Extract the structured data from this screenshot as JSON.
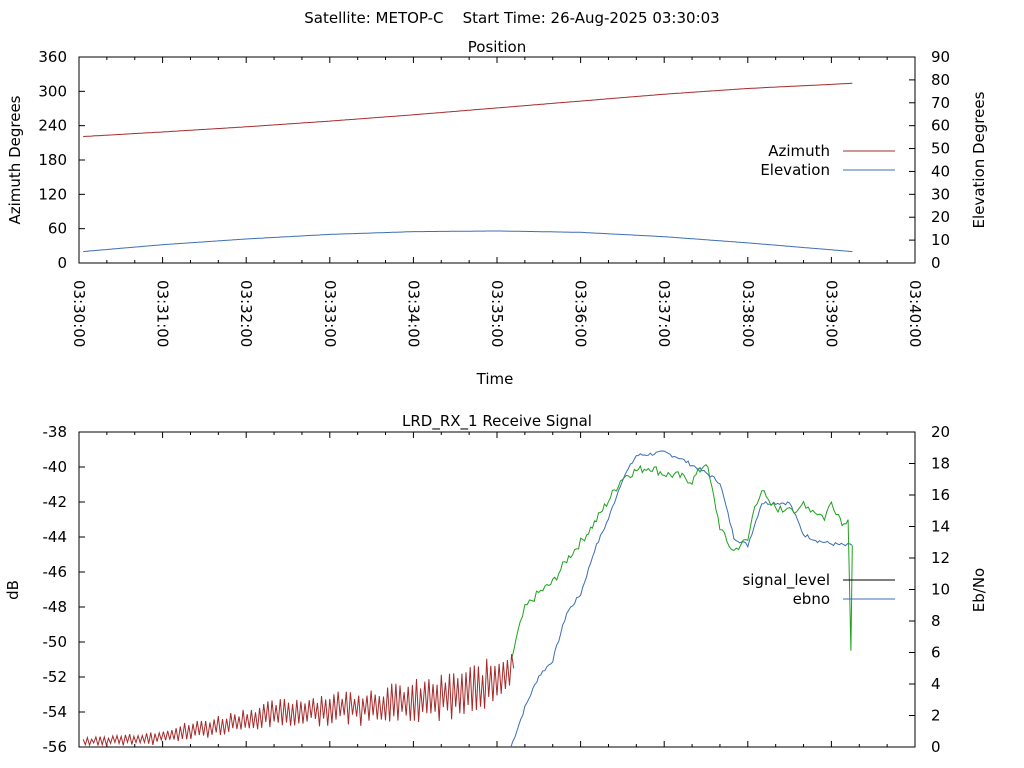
{
  "header": {
    "satellite": "Satellite: METOP-C",
    "start_time": "Start Time: 26-Aug-2025 03:30:03"
  },
  "chart_data": [
    {
      "type": "line",
      "title": "Position",
      "xlabel": "Time",
      "ylabel": "Azimuth Degrees",
      "y2label": "Elevation Degrees",
      "x_ticks": [
        "03:30:00",
        "03:31:00",
        "03:32:00",
        "03:33:00",
        "03:34:00",
        "03:35:00",
        "03:36:00",
        "03:37:00",
        "03:38:00",
        "03:39:00",
        "03:40:00"
      ],
      "xlim_seconds": [
        0,
        600
      ],
      "ylim": [
        0,
        360
      ],
      "y_ticks": [
        "0",
        "60",
        "120",
        "180",
        "240",
        "300",
        "360"
      ],
      "y2lim": [
        0,
        90
      ],
      "y2_ticks": [
        "0",
        "10",
        "20",
        "30",
        "40",
        "50",
        "60",
        "70",
        "80",
        "90"
      ],
      "legend_position": "right",
      "series": [
        {
          "name": "Azimuth",
          "axis": "y",
          "color": "#a52a2a",
          "x": [
            3,
            60,
            120,
            180,
            240,
            300,
            360,
            420,
            480,
            555
          ],
          "y": [
            221,
            229,
            238,
            248,
            259,
            271,
            283,
            295,
            305,
            314
          ]
        },
        {
          "name": "Elevation",
          "axis": "y2",
          "color": "#3b6eb5",
          "x": [
            3,
            60,
            120,
            180,
            240,
            300,
            360,
            420,
            480,
            555
          ],
          "y": [
            5,
            8,
            10.5,
            12.5,
            13.7,
            14,
            13.4,
            11.5,
            8.8,
            5
          ]
        }
      ]
    },
    {
      "type": "line",
      "title": "LRD_RX_1 Receive Signal",
      "ylabel": "dB",
      "y2label": "Eb/No",
      "xlim_seconds": [
        0,
        600
      ],
      "ylim": [
        -56,
        -38
      ],
      "y_ticks": [
        "-56",
        "-54",
        "-52",
        "-50",
        "-48",
        "-46",
        "-44",
        "-42",
        "-40",
        "-38"
      ],
      "y2lim": [
        0,
        20
      ],
      "y2_ticks": [
        "0",
        "2",
        "4",
        "6",
        "8",
        "10",
        "12",
        "14",
        "16",
        "18",
        "20"
      ],
      "legend_position": "right",
      "series": [
        {
          "name": "signal_level",
          "axis": "y",
          "color": "#000000",
          "x": [],
          "y": []
        },
        {
          "name": "ebno",
          "axis": "y2",
          "color": "#3b6eb5",
          "x": [
            310,
            320,
            330,
            340,
            350,
            360,
            370,
            380,
            390,
            400,
            410,
            420,
            430,
            440,
            450,
            460,
            470,
            480,
            490,
            500,
            510,
            520,
            530,
            540,
            550,
            555
          ],
          "y": [
            0,
            2.5,
            4.5,
            5.5,
            8.5,
            9.7,
            12.5,
            14.5,
            17,
            18.5,
            18.6,
            18.7,
            18.4,
            17.9,
            17.4,
            16.8,
            13.3,
            12.8,
            15.5,
            15.5,
            15.5,
            13.5,
            13.1,
            12.9,
            12.8,
            12.8
          ]
        },
        {
          "name": "",
          "axis": "y",
          "color": "#1fa11f",
          "x": [
            311,
            315,
            320,
            325,
            330,
            340,
            350,
            360,
            370,
            380,
            390,
            400,
            410,
            420,
            430,
            440,
            450,
            460,
            465,
            470,
            475,
            480,
            485,
            490,
            495,
            500,
            505,
            510,
            515,
            520,
            525,
            530,
            535,
            540,
            545,
            549,
            552,
            554,
            555
          ],
          "y": [
            -50.8,
            -49.5,
            -48.1,
            -47.6,
            -47.2,
            -46.6,
            -45.3,
            -44.3,
            -43.2,
            -41.9,
            -40.6,
            -40.2,
            -40.0,
            -40.4,
            -40.5,
            -40.8,
            -39.7,
            -43.4,
            -44.3,
            -44.8,
            -44.4,
            -44.2,
            -42.2,
            -41.3,
            -42.1,
            -42.3,
            -42.5,
            -42.1,
            -42.8,
            -42.0,
            -42.4,
            -42.6,
            -42.9,
            -42.0,
            -42.7,
            -43.3,
            -42.8,
            -50.4,
            -44.5
          ]
        },
        {
          "name": "",
          "axis": "y",
          "color": "#a52a2a",
          "x": [
            3,
            50,
            100,
            140,
            180,
            220,
            260,
            300,
            312
          ],
          "y": [
            -55.7,
            -55.5,
            -54.8,
            -54.1,
            -53.8,
            -53.6,
            -53.2,
            -52.3,
            -51.5
          ]
        }
      ]
    }
  ]
}
